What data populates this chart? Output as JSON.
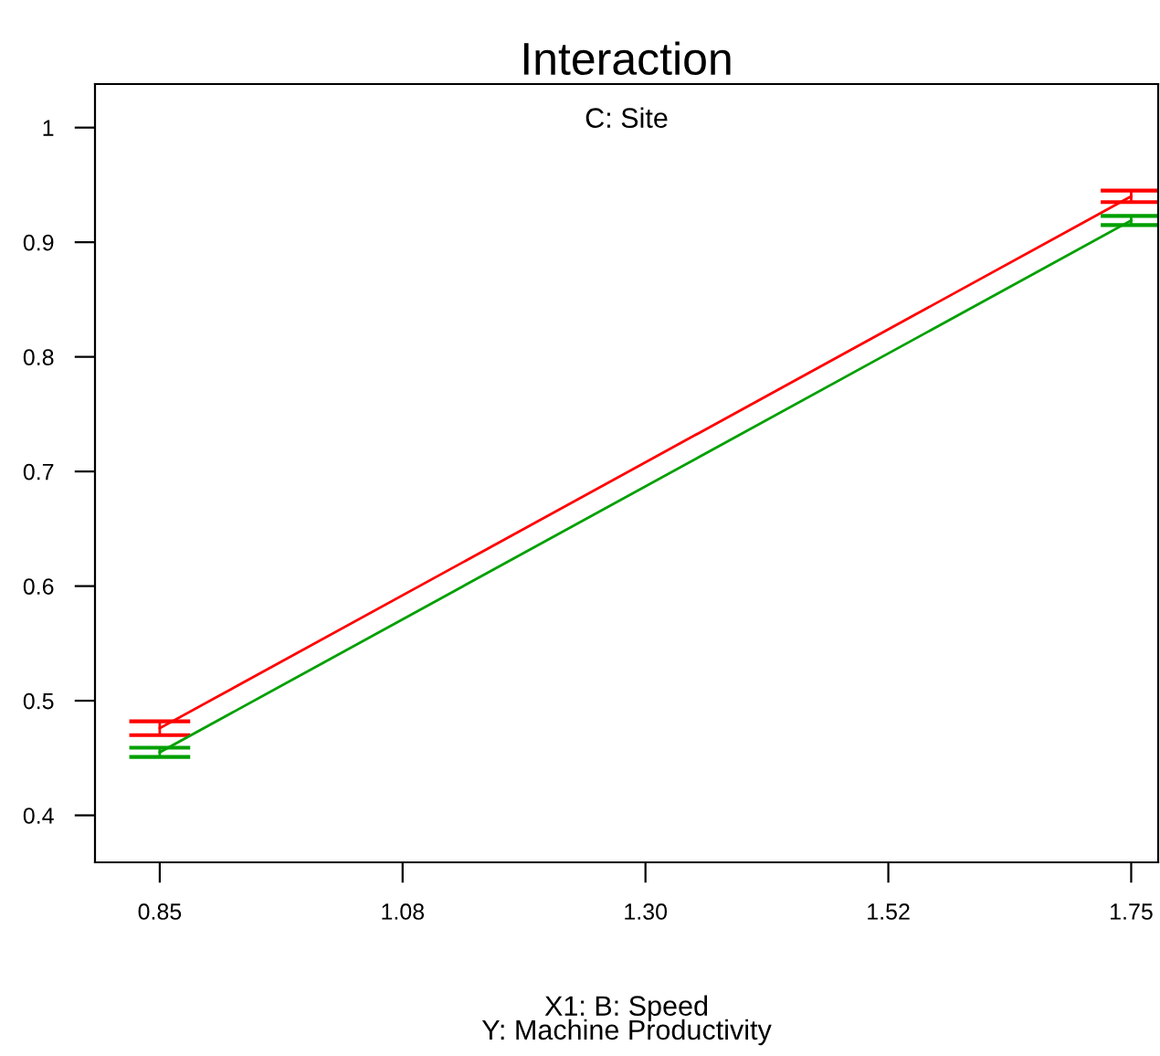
{
  "chart_data": {
    "type": "line",
    "title": "Interaction",
    "xlabel": "X1: B: Speed\nY: Machine Productivity",
    "annotations": [
      "C: Site"
    ],
    "x": [
      0.85,
      1.75
    ],
    "series": [
      {
        "color": "#ff0000",
        "values": [
          0.476,
          0.94
        ],
        "errors": [
          0.006,
          0.005
        ]
      },
      {
        "color": "#00a000",
        "values": [
          0.455,
          0.919
        ],
        "errors": [
          0.004,
          0.004
        ]
      }
    ],
    "xlim": [
      0.79,
      1.775
    ],
    "ylim": [
      0.359,
      1.038
    ],
    "xticks": [
      0.85,
      {
        "value": 1.075,
        "label": "1.08"
      },
      {
        "value": 1.3,
        "label": "1.30"
      },
      {
        "value": 1.525,
        "label": "1.52"
      },
      1.75
    ],
    "yticks": [
      0.4,
      0.5,
      0.6,
      0.7,
      0.8,
      0.9,
      1
    ],
    "grid": false,
    "legend": false,
    "marker": "none",
    "line_style": "solid"
  }
}
